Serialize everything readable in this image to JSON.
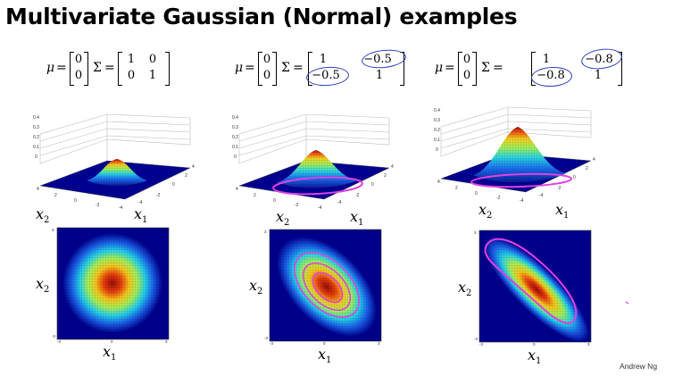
{
  "title": "Multivariate Gaussian (Normal) examples",
  "credit": "Andrew Ng",
  "examples": [
    {
      "mu_symbol": "μ",
      "equals": "=",
      "sigma_symbol": "Σ",
      "mu": [
        "0",
        "0"
      ],
      "sigma": [
        [
          "1",
          "0"
        ],
        [
          "0",
          "1"
        ]
      ],
      "annotated_entries": []
    },
    {
      "mu_symbol": "μ",
      "equals": "=",
      "sigma_symbol": "Σ",
      "mu": [
        "0",
        "0"
      ],
      "sigma": [
        [
          "1",
          "−0.5"
        ],
        [
          "−0.5",
          "1"
        ]
      ],
      "annotated_entries": [
        "−0.5",
        "−0.5"
      ]
    },
    {
      "mu_symbol": "μ",
      "equals": "=",
      "sigma_symbol": "Σ",
      "mu": [
        "0",
        "0"
      ],
      "sigma": [
        [
          "1",
          "−0.8"
        ],
        [
          "−0.8",
          "1"
        ]
      ],
      "annotated_entries": [
        "−0.8",
        "−0.8"
      ]
    }
  ],
  "axes": {
    "x1": "x",
    "x1_sub": "1",
    "x2": "x",
    "x2_sub": "2"
  },
  "surface_z_ticks": [
    "0.4",
    "0.3",
    "0.2",
    "0.1",
    "0"
  ],
  "surface_xy_ticks": [
    "4",
    "2",
    "0",
    "-2",
    "-4"
  ],
  "contour_ticks": [
    "-3",
    "-2",
    "-1",
    "0",
    "1",
    "2",
    "3"
  ],
  "colors": {
    "annotation_blue": "#2f3fb8",
    "annotation_magenta": "#e040e0",
    "contour_background": "#00008f"
  }
}
